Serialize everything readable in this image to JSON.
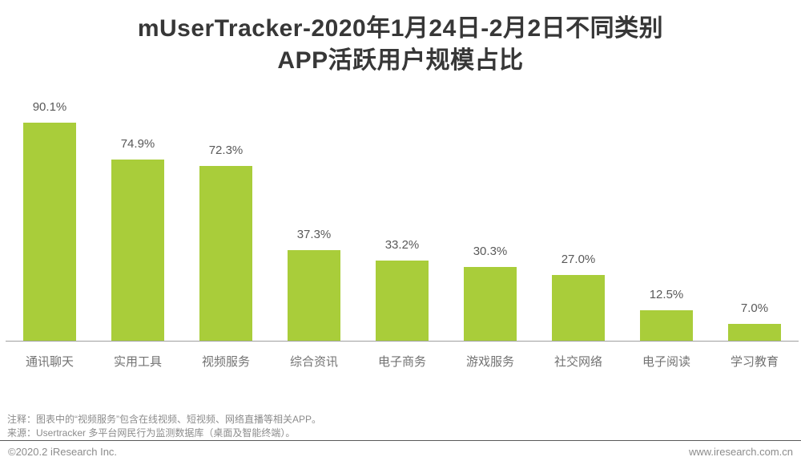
{
  "title": {
    "line1": "mUserTracker-2020年1月24日-2月2日不同类别",
    "line2": "APP活跃用户规模占比"
  },
  "chart_data": {
    "type": "bar",
    "title": "mUserTracker-2020年1月24日-2月2日不同类别APP活跃用户规模占比",
    "categories": [
      "通讯聊天",
      "实用工具",
      "视频服务",
      "综合资讯",
      "电子商务",
      "游戏服务",
      "社交网络",
      "电子阅读",
      "学习教育"
    ],
    "values": [
      90.1,
      74.9,
      72.3,
      37.3,
      33.2,
      30.3,
      27.0,
      12.5,
      7.0
    ],
    "value_labels": [
      "90.1%",
      "74.9%",
      "72.3%",
      "37.3%",
      "33.2%",
      "30.3%",
      "27.0%",
      "12.5%",
      "7.0%"
    ],
    "xlabel": "",
    "ylabel": "",
    "ylim": [
      0,
      100
    ],
    "grid": false,
    "legend": false,
    "data_labels_position": "above-bars"
  },
  "notes": {
    "note1": "注释：图表中的“视频服务”包含在线视频、短视频、网络直播等相关APP。",
    "note2": "来源：Usertracker 多平台网民行为监测数据库（桌面及智能终端）。"
  },
  "footer": {
    "copyright": "©2020.2 iResearch Inc.",
    "website": "www.iresearch.com.cn"
  },
  "colors": {
    "bar": "#a9cd3a",
    "title_text": "#373737",
    "label_text": "#595959",
    "category_text": "#737373",
    "note_text": "#8c8c8c",
    "axis_line": "#a0a0a0",
    "divider_line": "#5a5a5a"
  }
}
